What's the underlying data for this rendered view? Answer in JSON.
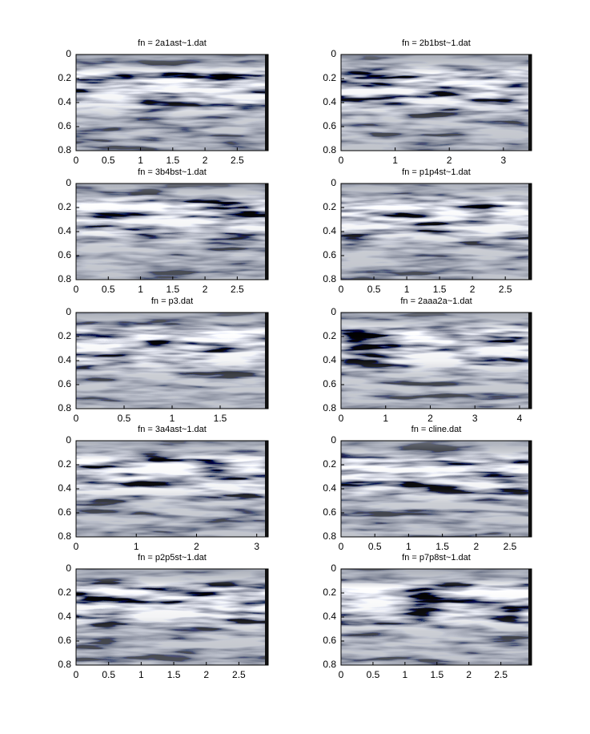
{
  "chart_data": [
    {
      "type": "image",
      "title": "fn = 2a1ast~1.dat",
      "xlim": [
        0,
        2.98
      ],
      "xticks": [
        0,
        0.5,
        1,
        1.5,
        2,
        2.5
      ],
      "ylim": [
        0,
        0.8
      ],
      "yticks": [
        0,
        0.2,
        0.4,
        0.6,
        0.8
      ]
    },
    {
      "type": "image",
      "title": "fn = 2b1bst~1.dat",
      "xlim": [
        0,
        3.52
      ],
      "xticks": [
        0,
        1,
        2,
        3
      ],
      "ylim": [
        0,
        0.8
      ],
      "yticks": [
        0,
        0.2,
        0.4,
        0.6,
        0.8
      ]
    },
    {
      "type": "image",
      "title": "fn = 3b4bst~1.dat",
      "xlim": [
        0,
        2.98
      ],
      "xticks": [
        0,
        0.5,
        1,
        1.5,
        2,
        2.5
      ],
      "ylim": [
        0,
        0.8
      ],
      "yticks": [
        0,
        0.2,
        0.4,
        0.6,
        0.8
      ]
    },
    {
      "type": "image",
      "title": "fn = p1p4st~1.dat",
      "xlim": [
        0,
        2.9
      ],
      "xticks": [
        0,
        0.5,
        1,
        1.5,
        2,
        2.5
      ],
      "ylim": [
        0,
        0.8
      ],
      "yticks": [
        0,
        0.2,
        0.4,
        0.6,
        0.8
      ]
    },
    {
      "type": "image",
      "title": "fn = p3.dat",
      "xlim": [
        0,
        2
      ],
      "xticks": [
        0,
        0.5,
        1,
        1.5
      ],
      "ylim": [
        0,
        0.8
      ],
      "yticks": [
        0,
        0.2,
        0.4,
        0.6,
        0.8
      ]
    },
    {
      "type": "image",
      "title": "fn = 2aaa2a~1.dat",
      "xlim": [
        0,
        4.27
      ],
      "xticks": [
        0,
        1,
        2,
        3,
        4
      ],
      "ylim": [
        0,
        0.8
      ],
      "yticks": [
        0,
        0.2,
        0.4,
        0.6,
        0.8
      ]
    },
    {
      "type": "image",
      "title": "fn = 3a4ast~1.dat",
      "xlim": [
        0,
        3.19
      ],
      "xticks": [
        0,
        1,
        2,
        3
      ],
      "ylim": [
        0,
        0.8
      ],
      "yticks": [
        0,
        0.2,
        0.4,
        0.6,
        0.8
      ]
    },
    {
      "type": "image",
      "title": "fn = cline.dat",
      "xlim": [
        0,
        2.82
      ],
      "xticks": [
        0,
        0.5,
        1,
        1.5,
        2,
        2.5
      ],
      "ylim": [
        0,
        0.8
      ],
      "yticks": [
        0,
        0.2,
        0.4,
        0.6,
        0.8
      ]
    },
    {
      "type": "image",
      "title": "fn = p2p5st~1.dat",
      "xlim": [
        0,
        2.95
      ],
      "xticks": [
        0,
        0.5,
        1,
        1.5,
        2,
        2.5
      ],
      "ylim": [
        0,
        0.8
      ],
      "yticks": [
        0,
        0.2,
        0.4,
        0.6,
        0.8
      ]
    },
    {
      "type": "image",
      "title": "fn = p7p8st~1.dat",
      "xlim": [
        0,
        2.98
      ],
      "xticks": [
        0,
        0.5,
        1,
        1.5,
        2,
        2.5
      ],
      "ylim": [
        0,
        0.8
      ],
      "yticks": [
        0,
        0.2,
        0.4,
        0.6,
        0.8
      ]
    }
  ]
}
